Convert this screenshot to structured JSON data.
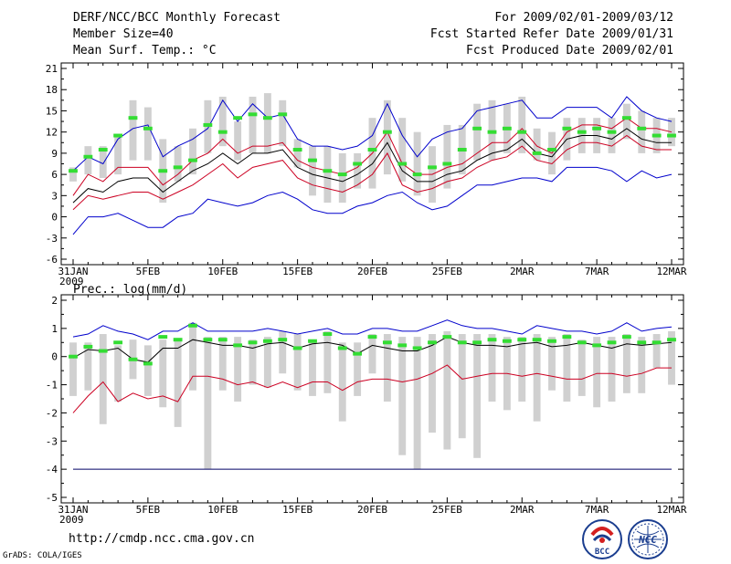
{
  "header": {
    "title": "DERF/NCC/BCC Monthly Forecast",
    "member_size": "Member Size=40",
    "variable": "Mean Surf. Temp.: °C",
    "period": "For 2009/02/01-2009/03/12",
    "started": "Fcst Started Refer Date 2009/01/31",
    "produced": "Fcst Produced Date 2009/02/01"
  },
  "footer": {
    "url": "http://cmdp.ncc.cma.gov.cn",
    "credit": "GrADS: COLA/IGES"
  },
  "logos": {
    "bcc_text": "BCC",
    "ncc_text": "NCC"
  },
  "colors": {
    "ensemble_max": "#0000cc",
    "ensemble_min": "#0000cc",
    "percentile": "#cc0022",
    "mean": "#000000",
    "box": "#d0d0d0",
    "climatology": "#33dd33",
    "threshold": "#000066"
  },
  "chart_data": [
    {
      "type": "box",
      "title": "Mean Surf. Temp.: °C",
      "x_ticks": [
        "31JAN\n2009",
        "5FEB",
        "10FEB",
        "15FEB",
        "20FEB",
        "25FEB",
        "2MAR",
        "7MAR",
        "12MAR"
      ],
      "day_count": 41,
      "ylim": [
        -6,
        21
      ],
      "y_ticks": [
        21,
        18,
        15,
        12,
        9,
        6,
        3,
        0,
        -3,
        -6
      ],
      "series": [
        {
          "name": "max",
          "values": [
            6.5,
            8.5,
            7.5,
            11,
            12.5,
            13,
            8.5,
            10,
            11,
            12.5,
            16.5,
            13.5,
            16,
            14,
            14.5,
            11,
            10,
            10,
            9.5,
            10,
            11.5,
            16,
            11.5,
            8.5,
            11,
            12,
            12.5,
            15,
            15.5,
            16,
            16.5,
            14,
            14,
            15.5,
            15.5,
            15.5,
            14,
            17,
            15,
            14,
            13.5
          ]
        },
        {
          "name": "p90",
          "values": [
            3,
            6,
            5,
            7,
            7,
            7,
            4.5,
            6,
            8,
            9,
            11,
            9,
            10,
            10,
            10.5,
            8,
            7,
            6.5,
            6,
            7,
            9,
            12,
            7.5,
            6,
            6,
            7,
            7.5,
            9,
            10.5,
            10.5,
            12.5,
            10,
            9,
            12,
            13,
            13,
            12.5,
            14,
            12.5,
            12.5,
            12
          ]
        },
        {
          "name": "mean",
          "values": [
            2,
            4,
            3.5,
            5,
            5.5,
            5.5,
            3.5,
            5,
            6.5,
            7.5,
            9,
            7.5,
            9,
            9,
            9.5,
            7,
            6,
            5.5,
            5,
            6,
            7.5,
            10.5,
            6.5,
            5,
            5,
            6,
            6.5,
            8,
            9,
            9.5,
            11,
            9,
            8.5,
            11,
            11.5,
            11.5,
            11,
            12.5,
            11,
            10.5,
            10.5
          ]
        },
        {
          "name": "p10",
          "values": [
            1,
            3,
            2.5,
            3,
            3.5,
            3.5,
            2.5,
            3.5,
            4.5,
            6,
            7.5,
            5.5,
            7,
            7.5,
            8,
            5.5,
            4.5,
            4,
            3.5,
            4.5,
            6,
            9,
            4.5,
            3.5,
            4,
            5,
            5.5,
            7,
            8,
            8.5,
            10,
            8,
            7.5,
            9.5,
            10.5,
            10.5,
            10,
            11.5,
            10,
            9.5,
            9.5
          ]
        },
        {
          "name": "min",
          "values": [
            -2.5,
            0,
            0,
            0.5,
            -0.5,
            -1.5,
            -1.5,
            0,
            0.5,
            2.5,
            2,
            1.5,
            2,
            3,
            3.5,
            2.5,
            1,
            0.5,
            0.5,
            1.5,
            2,
            3,
            3.5,
            2,
            1,
            1.5,
            3,
            4.5,
            4.5,
            5,
            5.5,
            5.5,
            5,
            7,
            7,
            7,
            6.5,
            5,
            6.5,
            5.5,
            6
          ]
        },
        {
          "name": "box_low",
          "values": [
            5,
            6,
            5.5,
            6,
            8,
            8,
            2,
            5,
            6,
            9,
            10,
            8,
            9,
            9,
            10,
            7,
            3,
            2,
            2,
            4,
            4,
            6,
            5,
            3,
            2,
            4,
            6,
            8,
            8,
            9,
            9,
            8,
            6,
            8,
            9,
            9,
            9,
            11,
            9,
            9,
            10
          ]
        },
        {
          "name": "box_high",
          "values": [
            7,
            10,
            10,
            11.5,
            16.5,
            15.5,
            11,
            10,
            12.5,
            16.5,
            17,
            13.5,
            17,
            17.5,
            16.5,
            11,
            10,
            10,
            9,
            9,
            14,
            16.5,
            14,
            12,
            10,
            13,
            13,
            16,
            16.5,
            16,
            17,
            12.5,
            12,
            14,
            14,
            14,
            14,
            16,
            15,
            14,
            14
          ]
        },
        {
          "name": "climatology",
          "values": [
            6.5,
            8.5,
            9.5,
            11.5,
            14,
            12.5,
            6.5,
            7,
            8,
            13,
            12,
            14,
            14.5,
            14,
            14.5,
            9.5,
            8,
            6.5,
            6,
            7.5,
            9.5,
            12,
            7.5,
            6,
            7,
            7.5,
            9.5,
            12.5,
            12,
            12.5,
            12,
            9,
            9.5,
            12.5,
            12,
            12.5,
            12,
            14,
            12.5,
            11.5,
            11.5
          ]
        }
      ]
    },
    {
      "type": "box",
      "title": "Prec.: log(mm/d)",
      "x_ticks": [
        "31JAN\n2009",
        "5FEB",
        "10FEB",
        "15FEB",
        "20FEB",
        "25FEB",
        "2MAR",
        "7MAR",
        "12MAR"
      ],
      "day_count": 41,
      "ylim": [
        -5,
        2
      ],
      "y_ticks": [
        2,
        1,
        0,
        -1,
        -2,
        -3,
        -4,
        -5
      ],
      "threshold": -4,
      "series": [
        {
          "name": "max",
          "values": [
            0.7,
            0.8,
            1.1,
            0.9,
            0.8,
            0.6,
            0.9,
            0.9,
            1.2,
            0.9,
            0.9,
            0.9,
            0.9,
            1,
            0.9,
            0.8,
            0.9,
            1,
            0.8,
            0.8,
            1,
            1,
            0.9,
            0.9,
            1.1,
            1.3,
            1.1,
            1,
            1,
            0.9,
            0.8,
            1.1,
            1,
            0.9,
            0.9,
            0.8,
            0.9,
            1.2,
            0.9,
            1,
            1.05
          ]
        },
        {
          "name": "mean",
          "values": [
            -0.05,
            0.25,
            0.2,
            0.3,
            -0.1,
            -0.2,
            0.3,
            0.3,
            0.6,
            0.5,
            0.4,
            0.4,
            0.3,
            0.45,
            0.5,
            0.3,
            0.45,
            0.5,
            0.4,
            0.1,
            0.4,
            0.3,
            0.2,
            0.2,
            0.4,
            0.7,
            0.5,
            0.4,
            0.4,
            0.35,
            0.45,
            0.5,
            0.35,
            0.4,
            0.5,
            0.4,
            0.3,
            0.45,
            0.4,
            0.45,
            0.5
          ]
        },
        {
          "name": "p10",
          "values": [
            -2,
            -1.4,
            -0.9,
            -1.6,
            -1.3,
            -1.5,
            -1.4,
            -1.6,
            -0.7,
            -0.7,
            -0.8,
            -1,
            -0.9,
            -1.1,
            -0.9,
            -1.1,
            -0.9,
            -0.9,
            -1.2,
            -0.9,
            -0.8,
            -0.8,
            -0.9,
            -0.8,
            -0.6,
            -0.3,
            -0.8,
            -0.7,
            -0.6,
            -0.6,
            -0.7,
            -0.6,
            -0.7,
            -0.8,
            -0.8,
            -0.6,
            -0.6,
            -0.7,
            -0.6,
            -0.4,
            -0.4
          ]
        },
        {
          "name": "box_low",
          "values": [
            -1.4,
            -1.2,
            -2.4,
            -1.6,
            -0.8,
            -1.4,
            -1.8,
            -2.5,
            -1.2,
            -4,
            -1.2,
            -1.6,
            -1,
            -1.1,
            -0.6,
            -1.2,
            -1.4,
            -1.3,
            -2.3,
            -1.4,
            -0.6,
            -1.6,
            -3.5,
            -4,
            -2.7,
            -3.3,
            -2.9,
            -3.6,
            -1.6,
            -1.9,
            -1.6,
            -2.3,
            -1.2,
            -1.6,
            -1.4,
            -1.8,
            -1.6,
            -1.3,
            -1.3,
            -0.4,
            -1
          ]
        },
        {
          "name": "box_high",
          "values": [
            0.5,
            0.5,
            0.8,
            0.4,
            0.6,
            0.4,
            0.6,
            0.6,
            1.2,
            0.7,
            0.7,
            0.7,
            0.6,
            0.7,
            0.9,
            0.8,
            0.6,
            0.9,
            0.5,
            0.5,
            0.8,
            0.8,
            0.7,
            0.7,
            0.8,
            0.9,
            0.8,
            0.8,
            0.8,
            0.7,
            0.7,
            0.8,
            0.7,
            0.8,
            0.6,
            0.7,
            0.7,
            0.8,
            0.7,
            0.8,
            0.9
          ]
        },
        {
          "name": "climatology",
          "values": [
            0,
            0.35,
            0.2,
            0.5,
            -0.1,
            -0.25,
            0.7,
            0.6,
            1.1,
            0.6,
            0.6,
            0.4,
            0.5,
            0.55,
            0.6,
            0.3,
            0.55,
            0.8,
            0.3,
            0.1,
            0.7,
            0.5,
            0.4,
            0.3,
            0.5,
            0.7,
            0.5,
            0.5,
            0.6,
            0.55,
            0.6,
            0.6,
            0.55,
            0.7,
            0.5,
            0.4,
            0.5,
            0.7,
            0.5,
            0.5,
            0.6
          ]
        }
      ]
    }
  ]
}
